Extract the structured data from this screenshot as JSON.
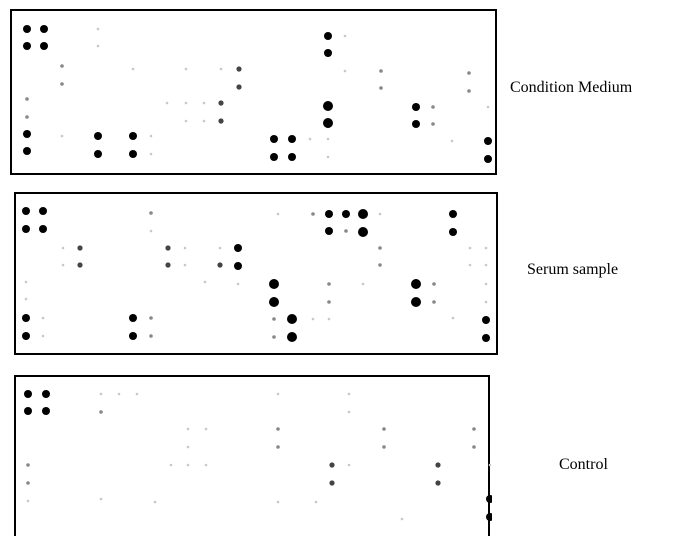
{
  "labels": {
    "condition_medium": "Condition Medium",
    "serum_sample": "Serum sample",
    "control": "Control"
  },
  "colors": {
    "strong": "#000000",
    "medium": "#444444",
    "weak": "#888888",
    "faint": "#c8c8c8"
  }
}
